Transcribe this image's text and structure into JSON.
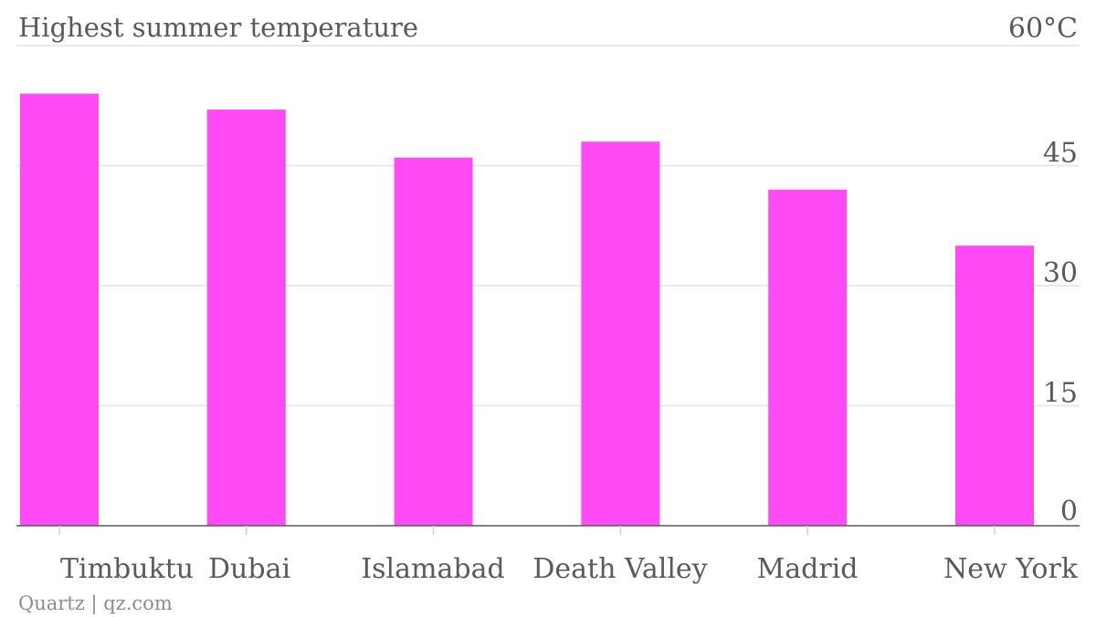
{
  "chart_data": {
    "type": "bar",
    "title": "Highest summer temperature",
    "unit": "°C",
    "categories": [
      "Timbuktu",
      "Dubai",
      "Islamabad",
      "Death Valley",
      "Madrid",
      "New York"
    ],
    "values": [
      54,
      52,
      46,
      48,
      42,
      35
    ],
    "ylim": [
      0,
      60
    ],
    "yticks": [
      0,
      15,
      30,
      45,
      60
    ],
    "ytick_labels": [
      "0",
      "15",
      "30",
      "45",
      "60°C"
    ],
    "bar_color": "#ff4af5",
    "grid": true,
    "y_axis_position": "right",
    "source": "Quartz | qz.com"
  }
}
